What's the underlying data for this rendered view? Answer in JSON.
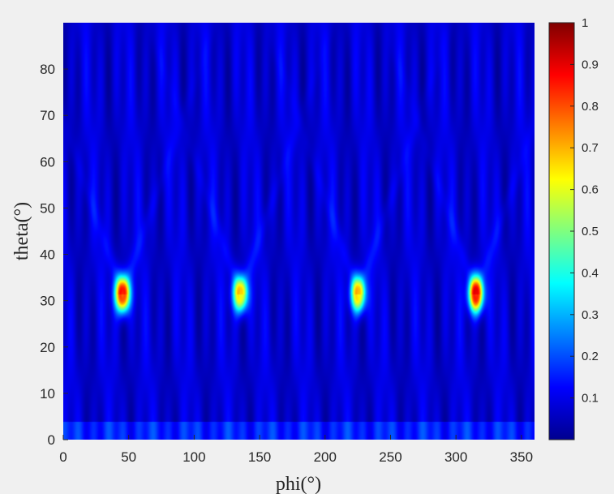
{
  "chart_data": {
    "type": "heatmap",
    "title": "",
    "xlabel": "phi(°)",
    "ylabel": "theta(°)",
    "xlim": [
      0,
      360
    ],
    "ylim": [
      0,
      90
    ],
    "xticks": [
      0,
      50,
      100,
      150,
      200,
      250,
      300,
      350
    ],
    "yticks": [
      0,
      10,
      20,
      30,
      40,
      50,
      60,
      70,
      80
    ],
    "colormap": "jet",
    "clim": [
      0,
      1
    ],
    "colorbar_ticks": [
      0.1,
      0.2,
      0.3,
      0.4,
      0.5,
      0.6,
      0.7,
      0.8,
      0.9,
      1
    ],
    "background_level": 0.08,
    "peaks": [
      {
        "phi": 45,
        "theta": 31.5,
        "value": 1.0
      },
      {
        "phi": 135,
        "theta": 31.5,
        "value": 0.75
      },
      {
        "phi": 225,
        "theta": 31.5,
        "value": 0.75
      },
      {
        "phi": 315,
        "theta": 31.5,
        "value": 1.0
      }
    ],
    "colors": {
      "low": "#00008f",
      "high": "#800000",
      "axes_text": "#262626",
      "figure_bg": "#f0f0f0"
    }
  }
}
